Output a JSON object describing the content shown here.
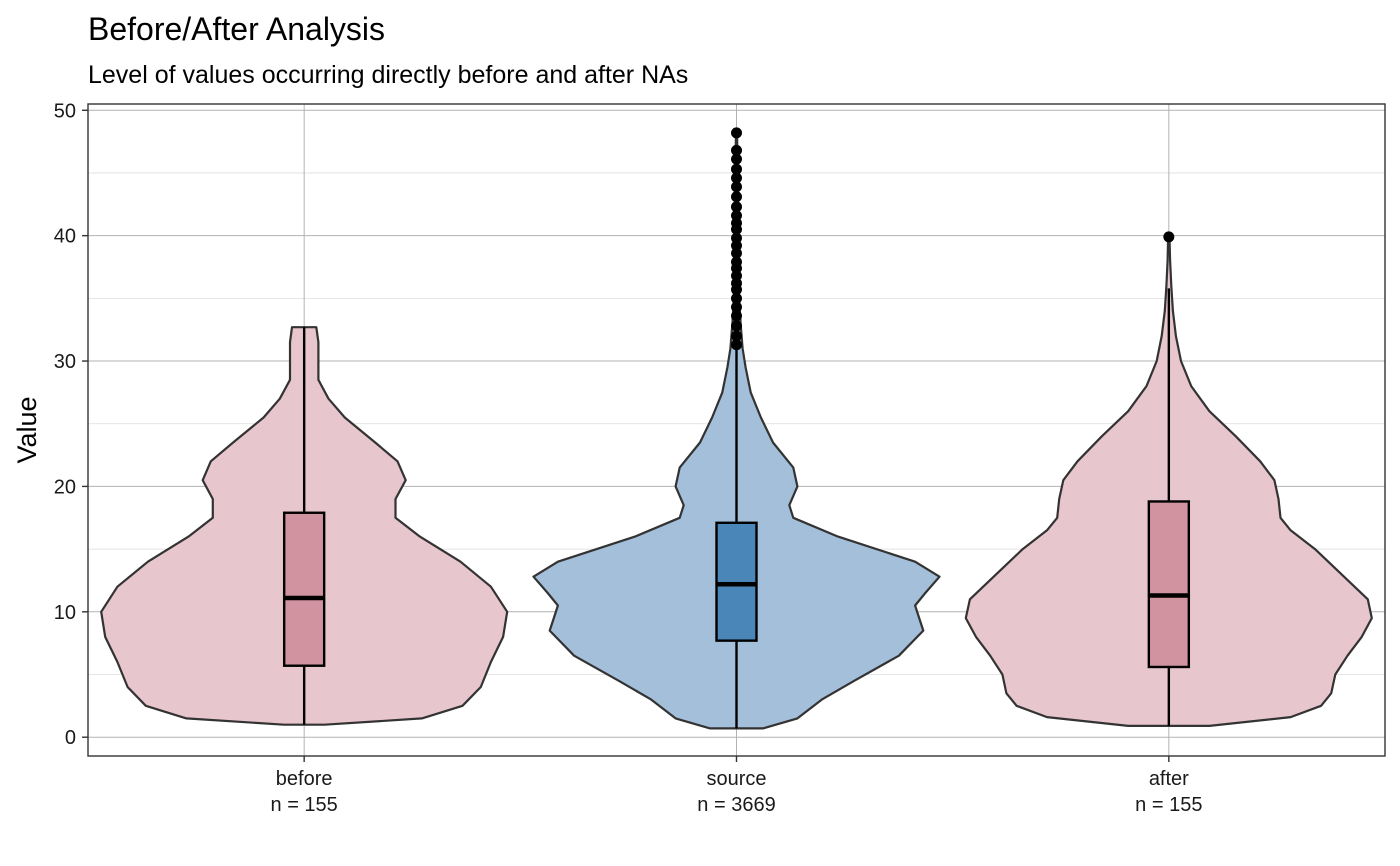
{
  "chart_data": {
    "type": "violin",
    "title": "Before/After Analysis",
    "subtitle": "Level of values occurring directly before and after NAs",
    "ylabel": "Value",
    "xlabel": "",
    "ylim": [
      -1.5,
      50.5
    ],
    "yticks": [
      0,
      10,
      20,
      30,
      40,
      50
    ],
    "grid": true,
    "categories": [
      "before",
      "source",
      "after"
    ],
    "series": [
      {
        "category": "before",
        "count_label": "n = 155",
        "fill_color": "#e8c6cd",
        "box_color": "#d0939f",
        "box": {
          "min": 1.0,
          "q1": 5.7,
          "median": 11.1,
          "q3": 17.9,
          "max": 32.7
        },
        "outliers": [],
        "density": [
          [
            1.0,
            0.1
          ],
          [
            1.5,
            0.58
          ],
          [
            2.5,
            0.78
          ],
          [
            4,
            0.87
          ],
          [
            6,
            0.92
          ],
          [
            8,
            0.98
          ],
          [
            10,
            1.0
          ],
          [
            12,
            0.92
          ],
          [
            14,
            0.77
          ],
          [
            16,
            0.57
          ],
          [
            17.5,
            0.45
          ],
          [
            19,
            0.45
          ],
          [
            20.5,
            0.5
          ],
          [
            22,
            0.46
          ],
          [
            23.5,
            0.35
          ],
          [
            25.5,
            0.2
          ],
          [
            27,
            0.12
          ],
          [
            28.5,
            0.07
          ],
          [
            30,
            0.07
          ],
          [
            31.5,
            0.07
          ],
          [
            32.7,
            0.06
          ]
        ]
      },
      {
        "category": "source",
        "count_label": "n = 3669",
        "fill_color": "#a3bfda",
        "box_color": "#4a86b8",
        "box": {
          "min": 0.7,
          "q1": 7.7,
          "median": 12.2,
          "q3": 17.1,
          "max": 31.3
        },
        "outliers": [
          31.3,
          32.0,
          32.8,
          33.6,
          34.3,
          35.0,
          35.7,
          36.2,
          36.8,
          37.4,
          37.9,
          38.6,
          39.2,
          39.8,
          40.5,
          41.0,
          41.6,
          42.3,
          43.1,
          43.9,
          44.6,
          45.3,
          46.1,
          46.8,
          48.2
        ],
        "density": [
          [
            0.7,
            0.13
          ],
          [
            1.5,
            0.3
          ],
          [
            3,
            0.42
          ],
          [
            4.5,
            0.58
          ],
          [
            6.5,
            0.8
          ],
          [
            8.5,
            0.92
          ],
          [
            9.5,
            0.9
          ],
          [
            10.5,
            0.88
          ],
          [
            11.5,
            0.93
          ],
          [
            12.8,
            1.0
          ],
          [
            14,
            0.88
          ],
          [
            16,
            0.5
          ],
          [
            17.5,
            0.28
          ],
          [
            18.5,
            0.26
          ],
          [
            20,
            0.3
          ],
          [
            21.5,
            0.28
          ],
          [
            23.5,
            0.18
          ],
          [
            25.5,
            0.12
          ],
          [
            27.5,
            0.07
          ],
          [
            29.5,
            0.045
          ],
          [
            31,
            0.03
          ],
          [
            33,
            0.02
          ],
          [
            35.5,
            0.012
          ],
          [
            38,
            0.008
          ],
          [
            41,
            0.006
          ],
          [
            44,
            0.005
          ],
          [
            46.5,
            0.004
          ],
          [
            48.2,
            0.003
          ]
        ]
      },
      {
        "category": "after",
        "count_label": "n = 155",
        "fill_color": "#e8c6cd",
        "box_color": "#d0939f",
        "box": {
          "min": 0.9,
          "q1": 5.6,
          "median": 11.3,
          "q3": 18.8,
          "max": 35.8
        },
        "outliers": [
          39.9
        ],
        "density": [
          [
            0.9,
            0.2
          ],
          [
            1.6,
            0.6
          ],
          [
            2.5,
            0.75
          ],
          [
            3.5,
            0.8
          ],
          [
            5,
            0.82
          ],
          [
            6.5,
            0.88
          ],
          [
            8,
            0.95
          ],
          [
            9.5,
            1.0
          ],
          [
            11,
            0.98
          ],
          [
            13,
            0.85
          ],
          [
            15,
            0.72
          ],
          [
            16.5,
            0.6
          ],
          [
            17.5,
            0.55
          ],
          [
            19,
            0.54
          ],
          [
            20.5,
            0.52
          ],
          [
            22,
            0.45
          ],
          [
            24,
            0.33
          ],
          [
            26,
            0.2
          ],
          [
            28,
            0.11
          ],
          [
            30,
            0.06
          ],
          [
            32,
            0.035
          ],
          [
            34,
            0.02
          ],
          [
            36,
            0.012
          ],
          [
            38,
            0.006
          ],
          [
            39.5,
            0.004
          ],
          [
            40,
            0.001
          ]
        ]
      }
    ]
  }
}
